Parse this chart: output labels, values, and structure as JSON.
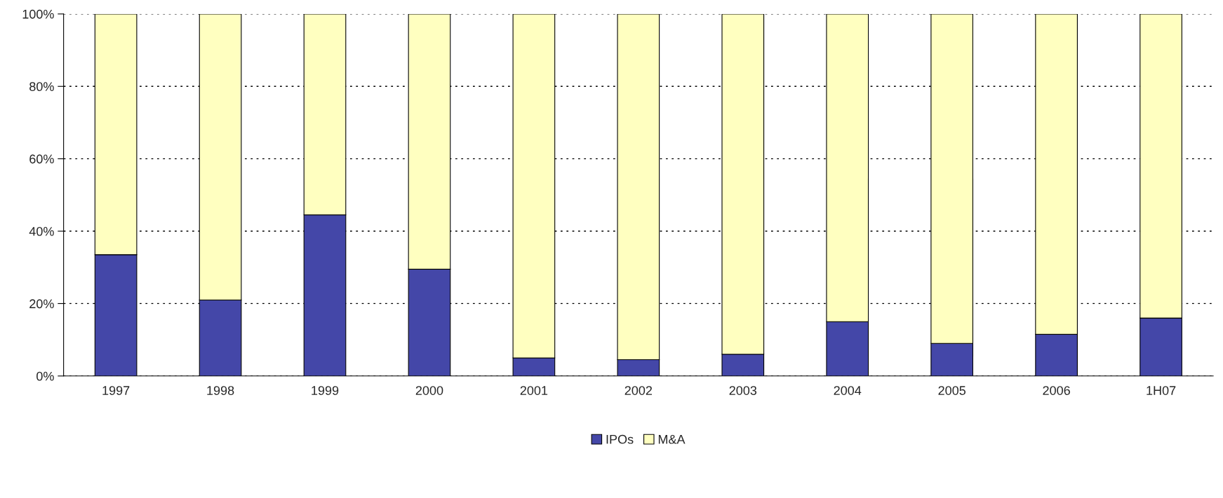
{
  "chart_data": {
    "type": "bar",
    "stacked": true,
    "categories": [
      "1997",
      "1998",
      "1999",
      "2000",
      "2001",
      "2002",
      "2003",
      "2004",
      "2005",
      "2006",
      "1H07"
    ],
    "series": [
      {
        "name": "IPOs",
        "color": "#4447a8",
        "values": [
          33.5,
          21,
          44.5,
          29.5,
          5,
          4.5,
          6,
          15,
          9,
          11.5,
          16
        ]
      },
      {
        "name": "M&A",
        "color": "#ffffc0",
        "values": [
          66.5,
          79,
          55.5,
          70.5,
          95,
          95.5,
          94,
          85,
          91,
          88.5,
          84
        ]
      }
    ],
    "ylim": [
      0,
      100
    ],
    "yticks": [
      {
        "value": 0,
        "label": "0%"
      },
      {
        "value": 20,
        "label": "20%"
      },
      {
        "value": 40,
        "label": "40%"
      },
      {
        "value": 60,
        "label": "60%"
      },
      {
        "value": 80,
        "label": "80%"
      },
      {
        "value": 100,
        "label": "100%"
      }
    ],
    "grid": "y",
    "legend": "bottom"
  }
}
